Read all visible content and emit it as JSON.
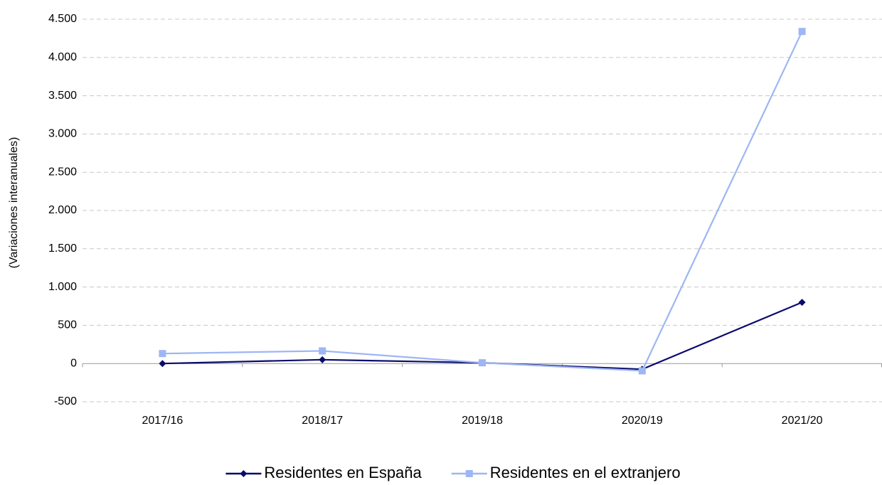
{
  "chart_data": {
    "type": "line",
    "y_label": "(Variaciones interanuales)",
    "categories": [
      "2017/16",
      "2018/17",
      "2019/18",
      "2020/19",
      "2021/20"
    ],
    "series": [
      {
        "name": "Residentes en España",
        "color": "#0b0b6b",
        "marker": "diamond",
        "values": [
          0,
          50,
          10,
          -75,
          800
        ]
      },
      {
        "name": "Residentes en el extranjero",
        "color": "#9db6f4",
        "marker": "square",
        "values": [
          130,
          165,
          10,
          -95,
          4340
        ]
      }
    ],
    "ylim": [
      -500,
      4500
    ],
    "yticks": [
      -500,
      0,
      500,
      {
        "value": 1000,
        "label": "1.000"
      },
      {
        "value": 1500,
        "label": "1.500"
      },
      {
        "value": 2000,
        "label": "2.000"
      },
      {
        "value": 2500,
        "label": "2.500"
      },
      {
        "value": 3000,
        "label": "3.000"
      },
      {
        "value": 3500,
        "label": "3.500"
      },
      {
        "value": 4000,
        "label": "4.000"
      },
      {
        "value": 4500,
        "label": "4.500"
      }
    ],
    "grid": true,
    "legend": "bottom"
  }
}
